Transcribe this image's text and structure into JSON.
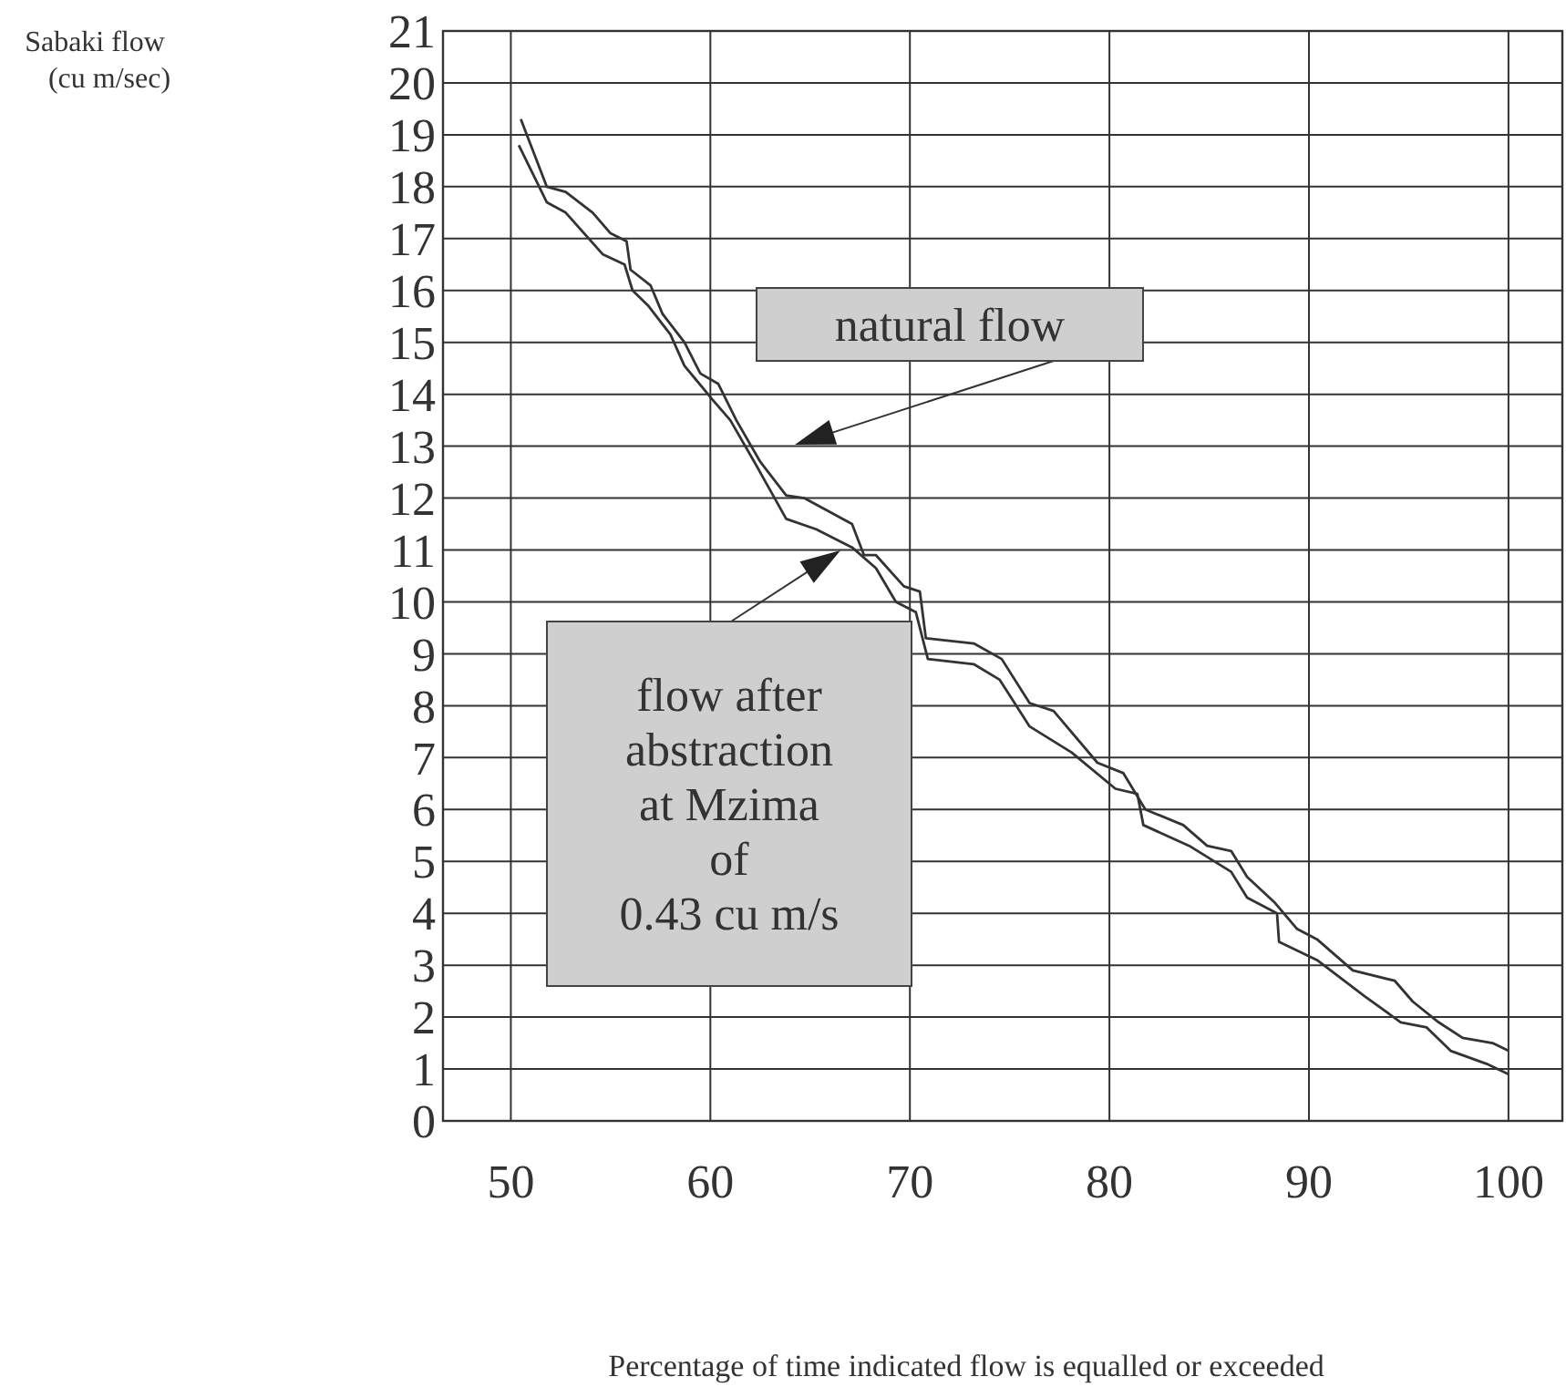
{
  "chart_data": {
    "type": "line",
    "xlabel": "Percentage of time indicated flow is equalled or exceeded",
    "xlim": [
      46.6,
      102.7
    ],
    "ylim": [
      0,
      21
    ],
    "xticks": [
      50,
      60,
      70,
      80,
      90,
      100
    ],
    "yticks": [
      0,
      1,
      2,
      3,
      4,
      5,
      6,
      7,
      8,
      9,
      10,
      11,
      12,
      13,
      14,
      15,
      16,
      17,
      18,
      19,
      20,
      21
    ],
    "grid": true,
    "marker": "none",
    "line_style": "solid",
    "series": [
      {
        "color": "#333333",
        "x": [
          50.5,
          51.8,
          52.75,
          54.1,
          55.0,
          55.8,
          56.0,
          57.0,
          57.6,
          58.7,
          59.5,
          60.4,
          61.3,
          62.5,
          63.8,
          64.7,
          67.1,
          67.7,
          68.3,
          69.7,
          70.5,
          70.8,
          73.2,
          74.6,
          76.0,
          77.2,
          79.4,
          80.7,
          81.8,
          83.7,
          84.9,
          86.1,
          86.9,
          88.3,
          89.4,
          90.4,
          92.2,
          94.3,
          95.2,
          96.5,
          97.7,
          99.2,
          100
        ],
        "values": [
          19.3,
          18.0,
          17.9,
          17.5,
          17.1,
          16.95,
          16.4,
          16.1,
          15.55,
          15.0,
          14.4,
          14.2,
          13.5,
          12.7,
          12.05,
          12.0,
          11.5,
          10.9,
          10.9,
          10.3,
          10.2,
          9.3,
          9.2,
          8.9,
          8.05,
          7.9,
          6.9,
          6.7,
          6.0,
          5.7,
          5.3,
          5.2,
          4.7,
          4.2,
          3.7,
          3.5,
          2.9,
          2.7,
          2.3,
          1.9,
          1.6,
          1.5,
          1.35
        ]
      },
      {
        "color": "#333333",
        "x": [
          50.4,
          51.8,
          52.75,
          54.6,
          55.7,
          56.1,
          56.9,
          58.0,
          58.7,
          60.1,
          61.0,
          62.2,
          63.8,
          65.3,
          67.1,
          68.3,
          69.3,
          70.3,
          70.9,
          73.2,
          74.5,
          76.0,
          78.1,
          80.3,
          81.4,
          81.7,
          84.0,
          86.1,
          86.9,
          88.4,
          88.5,
          90.4,
          92.8,
          94.6,
          95.9,
          97.1,
          98.9,
          100
        ],
        "values": [
          18.8,
          17.7,
          17.5,
          16.7,
          16.5,
          16.0,
          15.7,
          15.15,
          14.55,
          13.9,
          13.5,
          12.7,
          11.6,
          11.4,
          11.05,
          10.65,
          10.0,
          9.8,
          8.9,
          8.8,
          8.5,
          7.6,
          7.1,
          6.4,
          6.3,
          5.7,
          5.3,
          4.8,
          4.3,
          4.0,
          3.45,
          3.1,
          2.4,
          1.9,
          1.8,
          1.35,
          1.1,
          0.9
        ]
      }
    ],
    "annotations": [
      "Sabaki flow\n(cu m/sec)",
      "natural flow",
      "flow after\nabstraction\nat Mzima\nof\n0.43 cu m/s"
    ]
  }
}
